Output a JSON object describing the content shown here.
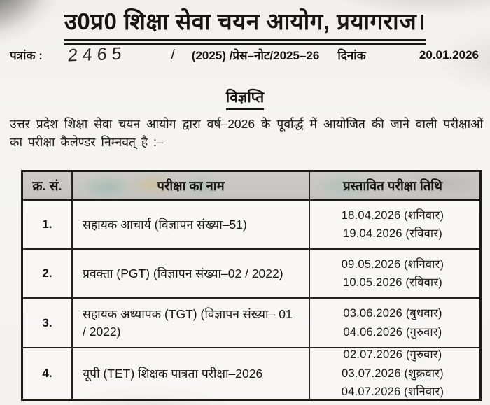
{
  "letterhead": {
    "title": "उ0प्र0 शिक्षा सेवा चयन आयोग, प्रयागराज।"
  },
  "letter_line": {
    "patrank_label": "पत्रांक :",
    "patrank_number": "2465",
    "slash": "/",
    "reference": "(2025) /प्रेस–नोट/2025–26",
    "dinank_label": "दिनांक",
    "date": "20.01.2026"
  },
  "notice": {
    "heading": "विज्ञप्ति",
    "paragraph": "उत्तर प्रदेश शिक्षा सेवा चयन आयोग द्वारा वर्ष–2026 के पूर्वार्द्ध में आयोजित की जाने वाली परीक्षाओं का परीक्षा कैलेण्डर निम्नवत् है :–"
  },
  "table": {
    "headers": [
      "क्र. सं.",
      "परीक्षा का नाम",
      "प्रस्तावित परीक्षा तिथि"
    ],
    "rows": [
      {
        "sno": "1.",
        "exam": "सहायक आचार्य (विज्ञापन संख्या–51)",
        "dates": [
          "18.04.2026 (शनिवार)",
          "19.04.2026 (रविवार)"
        ]
      },
      {
        "sno": "2.",
        "exam": "प्रवक्ता (PGT) (विज्ञापन संख्या–02 / 2022)",
        "dates": [
          "09.05.2026 (शनिवार)",
          "10.05.2026 (रविवार)"
        ]
      },
      {
        "sno": "3.",
        "exam": "सहायक अध्यापक (TGT) (विज्ञापन संख्या– 01 / 2022)",
        "dates": [
          "03.06.2026 (बुधवार)",
          "04.06.2026 (गुरुवार)"
        ]
      },
      {
        "sno": "4.",
        "exam": "यूपी (TET) शिक्षक पात्रता परीक्षा–2026",
        "dates": [
          "02.07.2026 (गुरुवार)",
          "03.07.2026 (शुक्रवार)",
          "04.07.2026 (शनिवार)"
        ]
      }
    ]
  },
  "colors": {
    "paper": "#f3f2ee",
    "ink": "#171513",
    "table_border": "#1d1b19",
    "table_header_bg": "#c9c8c4"
  }
}
